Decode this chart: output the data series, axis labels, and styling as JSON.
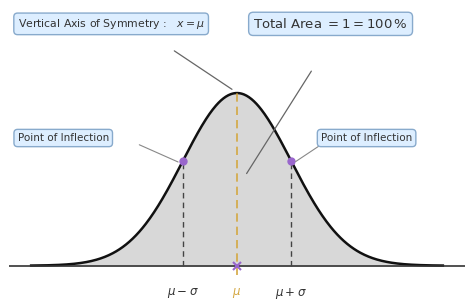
{
  "bg_color": "#ffffff",
  "curve_color": "#111111",
  "fill_color": "#d8d8d8",
  "dashed_center_color": "#d4a843",
  "dashed_sigma_color": "#444444",
  "inflection_dot_color": "#9966cc",
  "axis_line_color": "#333333",
  "mu": 0.0,
  "sigma": 1.0,
  "x_range": [
    -3.8,
    3.8
  ],
  "title_box_text": "Vertical Axis of Symmetry :   $x = \\mu$",
  "area_box_text": "Total Area $= 1 = 100\\,\\%$",
  "inflection_left_text": "Point of Inflection",
  "inflection_right_text": "Point of Inflection",
  "xlabel_left": "$\\mu - \\sigma$",
  "xlabel_center": "$\\mu$",
  "xlabel_right": "$\\mu + \\sigma$",
  "box_facecolor": "#ddeeff",
  "box_edgecolor": "#88aacc",
  "annotation_color": "#555555"
}
